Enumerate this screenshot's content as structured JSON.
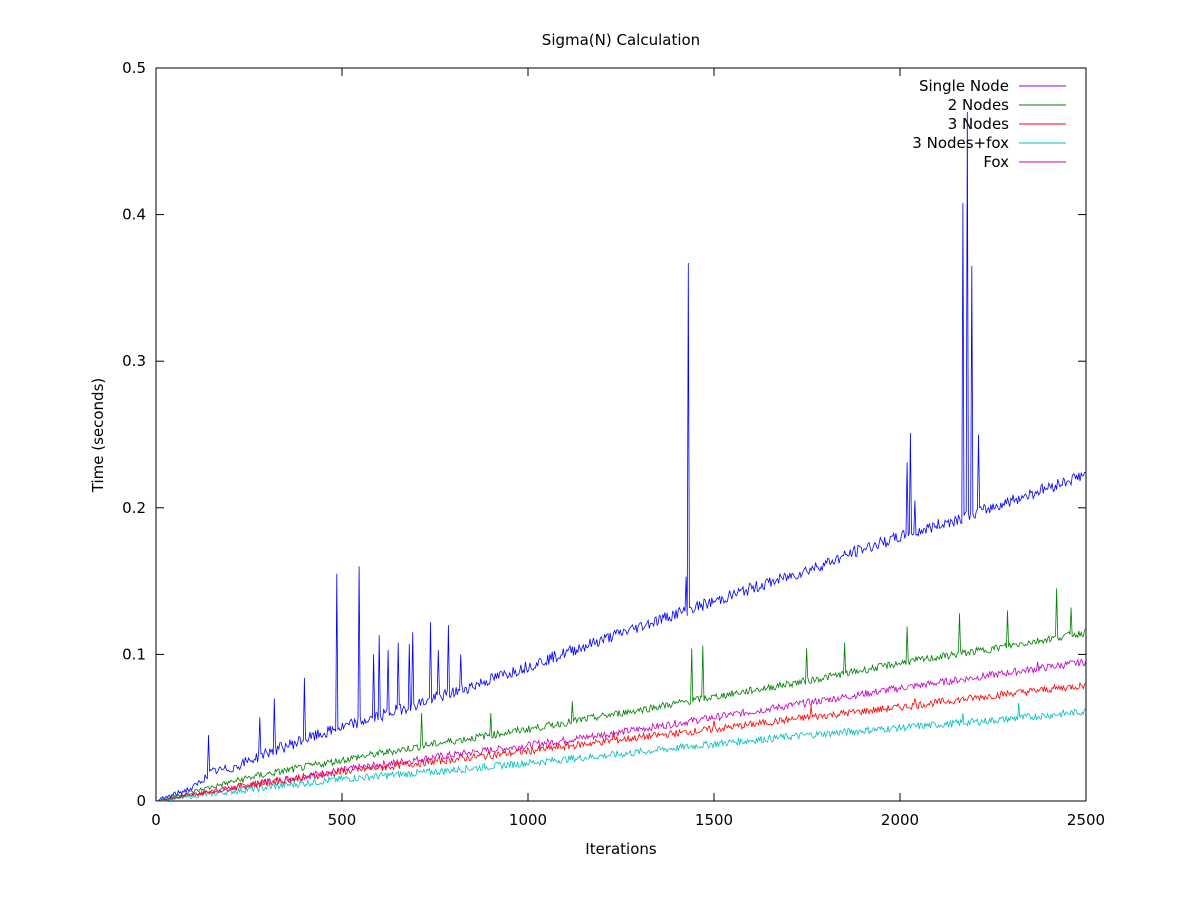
{
  "chart_data": {
    "type": "line",
    "title": "Sigma(N) Calculation",
    "xlabel": "Iterations",
    "ylabel": "Time (seconds)",
    "xlim": [
      0,
      2500
    ],
    "ylim": [
      0,
      0.5
    ],
    "xticks": [
      0,
      500,
      1000,
      1500,
      2000,
      2500
    ],
    "xtick_labels": [
      "0",
      "500",
      "1000",
      "1500",
      "2000",
      "2500"
    ],
    "yticks": [
      0,
      0.1,
      0.2,
      0.3,
      0.4,
      0.5
    ],
    "ytick_labels": [
      "0",
      "0.1",
      "0.2",
      "0.3",
      "0.4",
      "0.5"
    ],
    "grid": false,
    "legend_position": "top-right",
    "series": [
      {
        "name": "Single Node",
        "legend_color": "#9400d3",
        "color": "#0000ff",
        "x": [
          0,
          100,
          150,
          200,
          300,
          400,
          500,
          600,
          700,
          800,
          900,
          1000,
          1100,
          1200,
          1300,
          1400,
          1500,
          1600,
          1700,
          1800,
          1900,
          2000,
          2100,
          2200,
          2300,
          2400,
          2500
        ],
        "values": [
          0.0,
          0.009,
          0.02,
          0.022,
          0.033,
          0.042,
          0.05,
          0.058,
          0.066,
          0.074,
          0.083,
          0.092,
          0.101,
          0.11,
          0.119,
          0.128,
          0.136,
          0.145,
          0.153,
          0.162,
          0.172,
          0.18,
          0.188,
          0.196,
          0.205,
          0.214,
          0.223
        ],
        "spikes": [
          {
            "x": 140,
            "y": 0.045
          },
          {
            "x": 280,
            "y": 0.057
          },
          {
            "x": 318,
            "y": 0.07
          },
          {
            "x": 398,
            "y": 0.084
          },
          {
            "x": 486,
            "y": 0.155
          },
          {
            "x": 545,
            "y": 0.16
          },
          {
            "x": 585,
            "y": 0.1
          },
          {
            "x": 600,
            "y": 0.113
          },
          {
            "x": 625,
            "y": 0.103
          },
          {
            "x": 650,
            "y": 0.108
          },
          {
            "x": 680,
            "y": 0.107
          },
          {
            "x": 690,
            "y": 0.115
          },
          {
            "x": 738,
            "y": 0.122
          },
          {
            "x": 760,
            "y": 0.103
          },
          {
            "x": 785,
            "y": 0.12
          },
          {
            "x": 820,
            "y": 0.1
          },
          {
            "x": 1425,
            "y": 0.153
          },
          {
            "x": 1432,
            "y": 0.367
          },
          {
            "x": 2020,
            "y": 0.231
          },
          {
            "x": 2028,
            "y": 0.251
          },
          {
            "x": 2040,
            "y": 0.205
          },
          {
            "x": 2168,
            "y": 0.408
          },
          {
            "x": 2180,
            "y": 0.47
          },
          {
            "x": 2192,
            "y": 0.365
          },
          {
            "x": 2212,
            "y": 0.25
          }
        ]
      },
      {
        "name": "2 Nodes",
        "color": "#008000",
        "x": [
          0,
          250,
          500,
          750,
          1000,
          1250,
          1500,
          1750,
          2000,
          2250,
          2500
        ],
        "values": [
          0.0,
          0.016,
          0.028,
          0.039,
          0.049,
          0.06,
          0.071,
          0.082,
          0.094,
          0.104,
          0.115
        ],
        "spikes": [
          {
            "x": 715,
            "y": 0.06
          },
          {
            "x": 900,
            "y": 0.06
          },
          {
            "x": 1120,
            "y": 0.068
          },
          {
            "x": 1440,
            "y": 0.104
          },
          {
            "x": 1470,
            "y": 0.106
          },
          {
            "x": 1750,
            "y": 0.104
          },
          {
            "x": 1850,
            "y": 0.108
          },
          {
            "x": 2020,
            "y": 0.119
          },
          {
            "x": 2160,
            "y": 0.128
          },
          {
            "x": 2290,
            "y": 0.13
          },
          {
            "x": 2420,
            "y": 0.145
          },
          {
            "x": 2460,
            "y": 0.132
          }
        ]
      },
      {
        "name": "3 Nodes",
        "color": "#ff0000",
        "x": [
          0,
          250,
          500,
          750,
          1000,
          1250,
          1500,
          1750,
          2000,
          2250,
          2500
        ],
        "values": [
          0.0,
          0.011,
          0.02,
          0.027,
          0.034,
          0.042,
          0.049,
          0.057,
          0.064,
          0.072,
          0.079
        ],
        "spikes": [
          {
            "x": 1230,
            "y": 0.048
          },
          {
            "x": 1500,
            "y": 0.055
          },
          {
            "x": 1760,
            "y": 0.065
          },
          {
            "x": 2040,
            "y": 0.07
          }
        ]
      },
      {
        "name": "3 Nodes+fox",
        "color": "#00bfbf",
        "x": [
          0,
          250,
          500,
          750,
          1000,
          1250,
          1500,
          1750,
          2000,
          2250,
          2500
        ],
        "values": [
          0.0,
          0.008,
          0.015,
          0.02,
          0.026,
          0.032,
          0.039,
          0.045,
          0.05,
          0.055,
          0.061
        ],
        "spikes": [
          {
            "x": 2170,
            "y": 0.06
          },
          {
            "x": 2320,
            "y": 0.067
          }
        ]
      },
      {
        "name": "Fox",
        "color": "#c000c0",
        "x": [
          0,
          250,
          500,
          750,
          1000,
          1250,
          1500,
          1750,
          2000,
          2250,
          2500
        ],
        "values": [
          0.0,
          0.011,
          0.021,
          0.03,
          0.038,
          0.047,
          0.057,
          0.067,
          0.077,
          0.086,
          0.095
        ],
        "spikes": [
          {
            "x": 1480,
            "y": 0.058
          },
          {
            "x": 1900,
            "y": 0.075
          },
          {
            "x": 2370,
            "y": 0.095
          }
        ]
      }
    ]
  }
}
